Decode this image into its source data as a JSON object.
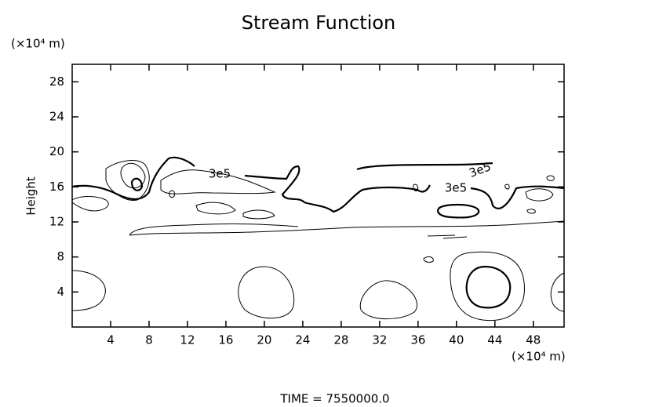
{
  "chart_data": {
    "type": "contour",
    "title": "Stream Function",
    "ylabel": "Height",
    "yunit": "(×10⁴ m)",
    "xunit": "(×10⁴ m)",
    "footer": "TIME = 7550000.0",
    "xlim": [
      0,
      51.2
    ],
    "ylim": [
      0,
      30
    ],
    "xticks": [
      4,
      8,
      12,
      16,
      20,
      24,
      28,
      32,
      36,
      40,
      44,
      48
    ],
    "yticks": [
      4,
      8,
      12,
      16,
      20,
      24,
      28
    ],
    "contours": [
      {
        "level": 300000,
        "label": "3e5"
      }
    ]
  }
}
